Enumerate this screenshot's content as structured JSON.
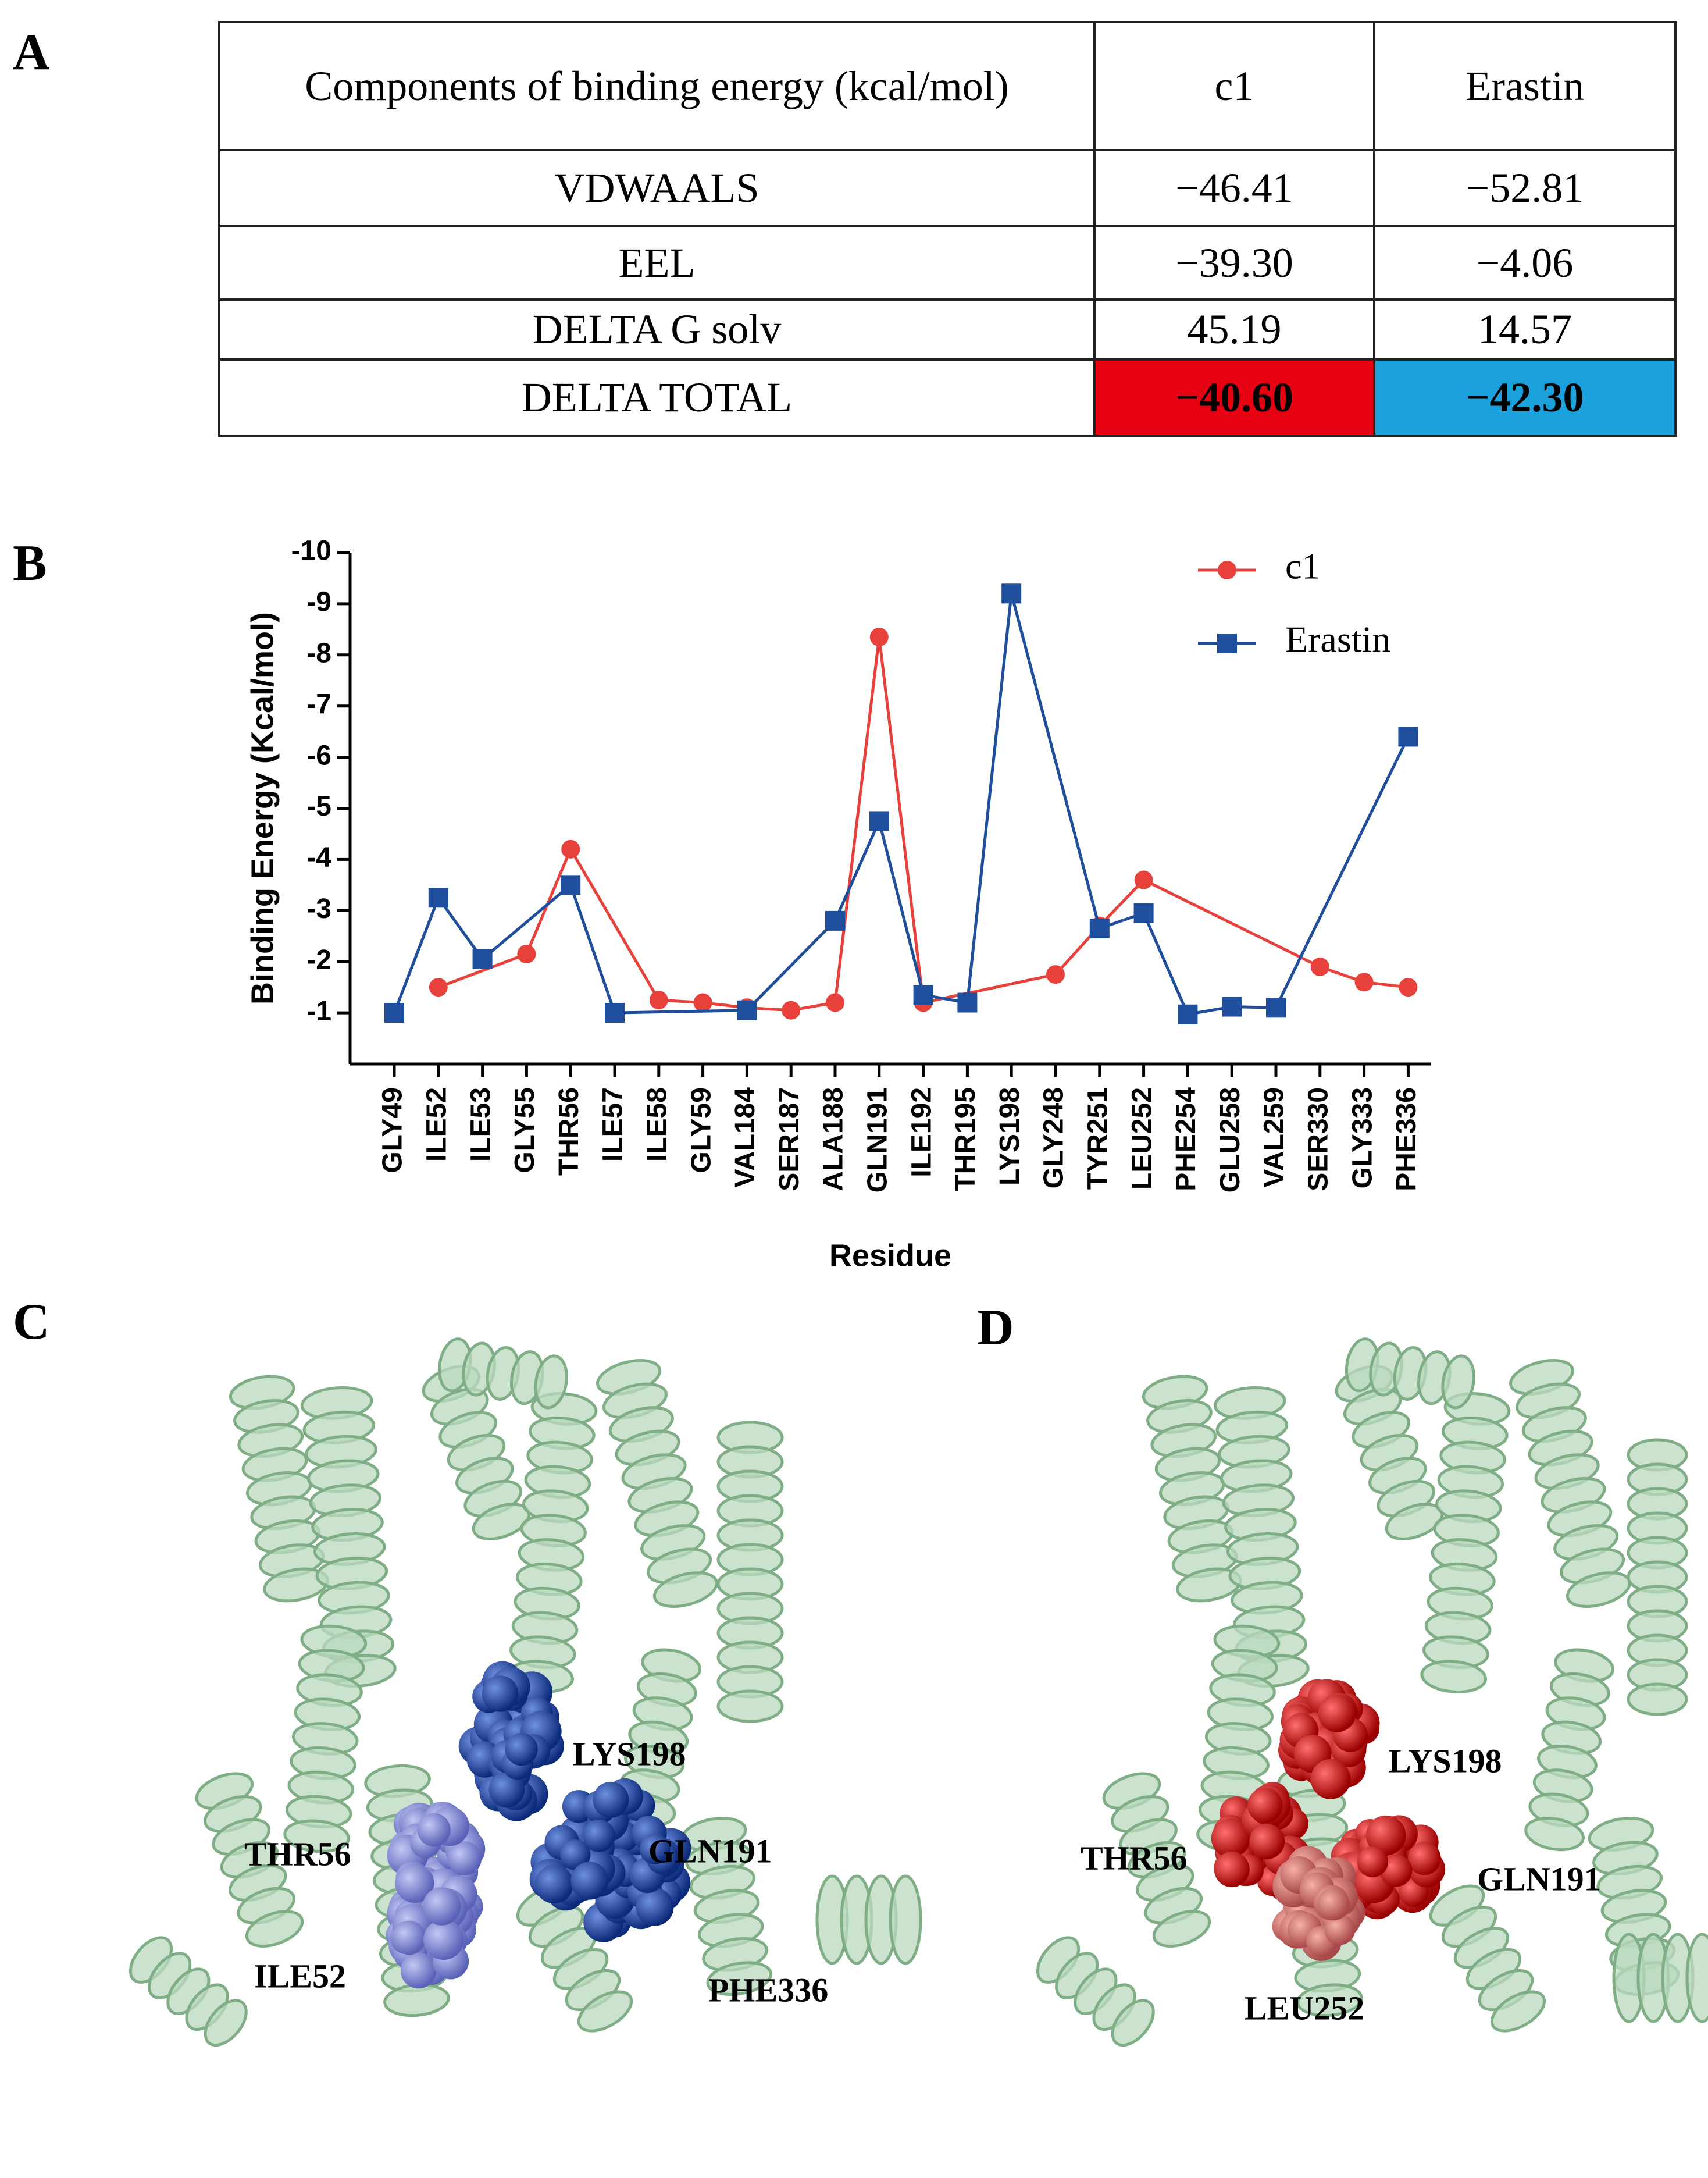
{
  "panel_labels": {
    "a": "A",
    "b": "B",
    "c": "C",
    "d": "D"
  },
  "table": {
    "header": [
      "Components of binding energy (kcal/mol)",
      "c1",
      "Erastin"
    ],
    "rows": [
      [
        "VDWAALS",
        "−46.41",
        "−52.81"
      ],
      [
        "EEL",
        "−39.30",
        "−4.06"
      ],
      [
        "DELTA G solv",
        "45.19",
        "14.57"
      ],
      [
        "DELTA TOTAL",
        "−40.60",
        "−42.30"
      ]
    ],
    "highlight_colors": [
      "#e50012",
      "#1ba1dc"
    ]
  },
  "chart_data": {
    "type": "line",
    "x_label": "Residue",
    "y_label": "Binding Energy (Kcal/mol)",
    "categories": [
      "GLY49",
      "ILE52",
      "ILE53",
      "GLY55",
      "THR56",
      "ILE57",
      "ILE58",
      "GLY59",
      "VAL184",
      "SER187",
      "ALA188",
      "GLN191",
      "ILE192",
      "THR195",
      "LYS198",
      "GLY248",
      "TYR251",
      "LEU252",
      "PHE254",
      "GLU258",
      "VAL259",
      "SER330",
      "GLY333",
      "PHE336"
    ],
    "series": [
      {
        "name": "c1",
        "color": "#e8403a",
        "marker": "circle",
        "values": [
          null,
          -1.5,
          null,
          -2.15,
          -4.2,
          null,
          -1.25,
          -1.2,
          -1.1,
          -1.05,
          -1.2,
          -8.35,
          -1.2,
          null,
          null,
          -1.75,
          -2.7,
          -3.6,
          null,
          null,
          null,
          -1.9,
          -1.6,
          -1.5
        ]
      },
      {
        "name": "Erastin",
        "color": "#1f4e9c",
        "marker": "square",
        "values": [
          -1.0,
          -3.25,
          -2.05,
          null,
          -3.5,
          -1.0,
          null,
          null,
          -1.05,
          null,
          -2.8,
          -4.75,
          -1.35,
          -1.2,
          -9.2,
          null,
          -2.65,
          -2.95,
          -0.97,
          -1.12,
          -1.1,
          null,
          null,
          -6.4
        ]
      }
    ],
    "ylim": [
      0,
      -10
    ],
    "yticks": [
      -10,
      -9,
      -8,
      -7,
      -6,
      -5,
      -4,
      -3,
      -2,
      -1
    ],
    "legend": "upper right"
  },
  "panel_c": {
    "labels": [
      "LYS198",
      "GLN191",
      "THR56",
      "ILE52",
      "PHE336"
    ]
  },
  "panel_d": {
    "labels": [
      "LYS198",
      "THR56",
      "GLN191",
      "LEU252"
    ]
  }
}
